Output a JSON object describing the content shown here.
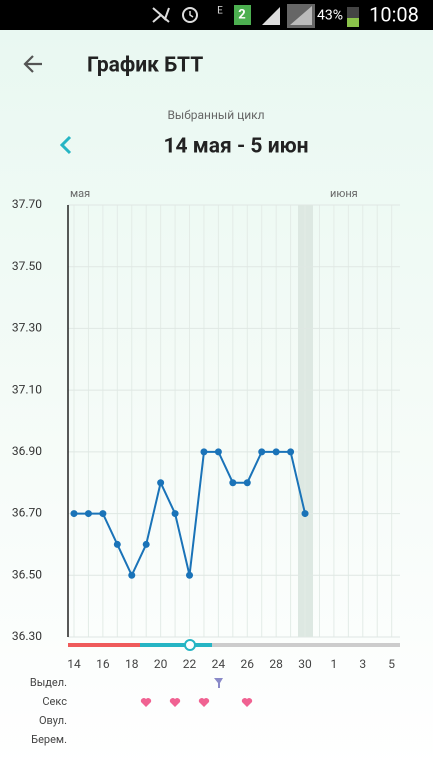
{
  "status_bar": {
    "network": "E",
    "sim": "2",
    "battery": "43%",
    "time": "10:08"
  },
  "header": {
    "title": "График БТТ"
  },
  "cycle": {
    "caption": "Выбранный цикл",
    "range": "14 мая - 5 июн"
  },
  "chart_data": {
    "type": "line",
    "month_labels": [
      "мая",
      "июня"
    ],
    "categories": [
      "14",
      null,
      "16",
      null,
      "18",
      null,
      "20",
      null,
      "22",
      null,
      "24",
      null,
      "26",
      null,
      "28",
      null,
      "30",
      null,
      "1",
      null,
      "3",
      null,
      "5"
    ],
    "series": [
      {
        "color": "#1a73b8",
        "values": [
          36.7,
          36.7,
          36.7,
          36.6,
          36.5,
          36.6,
          36.8,
          36.7,
          36.5,
          36.9,
          36.9,
          36.8,
          36.8,
          36.9,
          36.9,
          36.9,
          36.7,
          null,
          null,
          null,
          null,
          null,
          null
        ]
      }
    ],
    "ylim": [
      36.3,
      37.7
    ],
    "yticks": [
      {
        "value": 36.3,
        "label": "36.30"
      },
      {
        "value": 36.5,
        "label": "36.50"
      },
      {
        "value": 36.7,
        "label": "36.70"
      },
      {
        "value": 36.9,
        "label": "36.90"
      },
      {
        "value": 37.1,
        "label": "37.10"
      },
      {
        "value": 37.3,
        "label": "37.30"
      },
      {
        "value": 37.5,
        "label": "37.50"
      },
      {
        "value": 37.7,
        "label": "37.70"
      }
    ],
    "grid": true
  },
  "rows": [
    "Выдел.",
    "Секс",
    "Овул.",
    "Берем."
  ]
}
